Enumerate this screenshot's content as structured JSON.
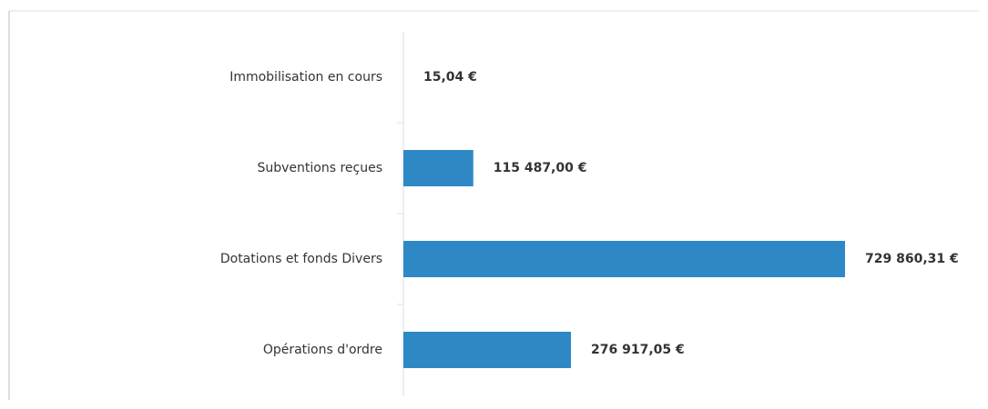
{
  "chart_data": {
    "type": "bar",
    "orientation": "horizontal",
    "categories": [
      "Immobilisation en cours",
      "Subventions reçues",
      "Dotations et fonds Divers",
      "Opérations d'ordre"
    ],
    "values": [
      15.04,
      115487.0,
      729860.31,
      276917.05
    ],
    "value_labels": [
      "15,04 €",
      "115 487,00 €",
      "729 860,31 €",
      "276 917,05 €"
    ],
    "color": "#2f88c6"
  }
}
